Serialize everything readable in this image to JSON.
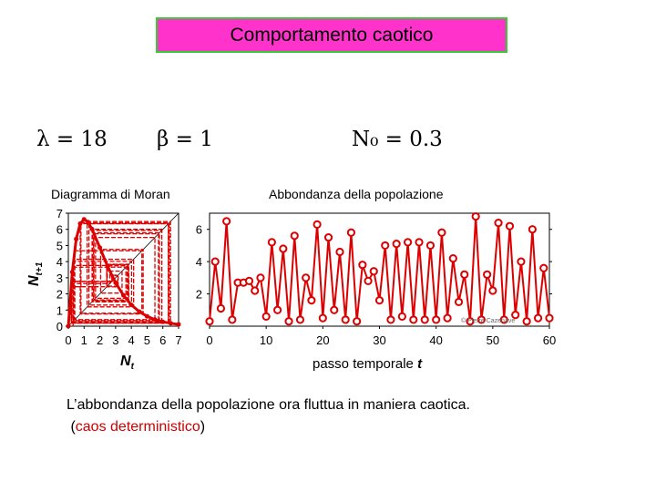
{
  "slide": {
    "title": "Comportamento caotico",
    "params": {
      "lambda": "λ = 18",
      "beta": "β = 1",
      "n0": "N₀ = 0.3"
    },
    "caption_line1": "L’abbondanza della popolazione ora fluttua in maniera caotica.",
    "caption_line2_open": "(",
    "caption_line2_red": "caos deterministico",
    "caption_line2_close": ")",
    "colors": {
      "title_bg": "#ff33cc",
      "title_border": "#33cc33",
      "series": "#dd0000",
      "caption_red": "#cc0000"
    }
  },
  "chart_data": [
    {
      "type": "line",
      "title": "Diagramma di Moran",
      "xlabel": "N_t",
      "ylabel": "N_t+1",
      "xlim": [
        0,
        7
      ],
      "ylim": [
        0,
        7
      ],
      "xticks": [
        "0",
        "1",
        "2",
        "3",
        "4",
        "5",
        "6",
        "7"
      ],
      "yticks": [
        "0",
        "1",
        "2",
        "3",
        "4",
        "5",
        "6",
        "7"
      ],
      "series": [
        {
          "name": "",
          "kind": "map-curve",
          "x": [
            0,
            0.25,
            0.5,
            0.75,
            1,
            1.25,
            1.5,
            2,
            2.5,
            3,
            3.5,
            4,
            4.5,
            5,
            5.5,
            6,
            6.5,
            7
          ],
          "y": [
            0,
            3.35,
            5.4,
            6.35,
            6.62,
            6.45,
            6.02,
            4.87,
            3.69,
            2.69,
            1.91,
            1.32,
            0.9,
            0.61,
            0.41,
            0.27,
            0.18,
            0.11
          ]
        },
        {
          "name": "",
          "kind": "diagonal",
          "x": [
            0,
            7
          ],
          "y": [
            0,
            7
          ]
        }
      ],
      "cobweb_start": 0.3,
      "cobweb_steps": 45
    },
    {
      "type": "line",
      "title": "Abbondanza della popolazione",
      "xlabel": "passo temporale  t",
      "ylabel": "",
      "xlim": [
        0,
        60
      ],
      "ylim": [
        0,
        7
      ],
      "xticks": [
        "0",
        "10",
        "20",
        "30",
        "40",
        "50",
        "60"
      ],
      "yticks": [
        "2",
        "4",
        "6"
      ],
      "annotation": "© Pierre Cazenave",
      "series": [
        {
          "name": "",
          "x": [
            0,
            1,
            2,
            3,
            4,
            5,
            6,
            7,
            8,
            9,
            10,
            11,
            12,
            13,
            14,
            15,
            16,
            17,
            18,
            19,
            20,
            21,
            22,
            23,
            24,
            25,
            26,
            27,
            28,
            29,
            30,
            31,
            32,
            33,
            34,
            35,
            36,
            37,
            38,
            39,
            40,
            41,
            42,
            43,
            44,
            45,
            46,
            47,
            48,
            49,
            50,
            51,
            52,
            53,
            54,
            55,
            56,
            57,
            58,
            59,
            60
          ],
          "y": [
            0.3,
            4.0,
            1.1,
            6.5,
            0.4,
            2.7,
            2.7,
            2.8,
            2.2,
            3.0,
            0.6,
            5.2,
            1.0,
            4.8,
            0.3,
            5.6,
            0.4,
            3.0,
            1.6,
            6.3,
            0.5,
            5.5,
            1.0,
            4.6,
            0.4,
            5.8,
            0.3,
            3.8,
            2.8,
            3.4,
            1.6,
            5.0,
            0.4,
            5.1,
            0.6,
            5.2,
            0.4,
            5.2,
            0.4,
            5.0,
            0.4,
            5.8,
            0.5,
            4.2,
            1.5,
            3.2,
            0.3,
            6.8,
            0.4,
            3.2,
            2.2,
            6.4,
            0.4,
            6.2,
            0.7,
            4.0,
            0.3,
            6.0,
            0.5,
            3.6,
            0.5
          ]
        }
      ]
    }
  ]
}
